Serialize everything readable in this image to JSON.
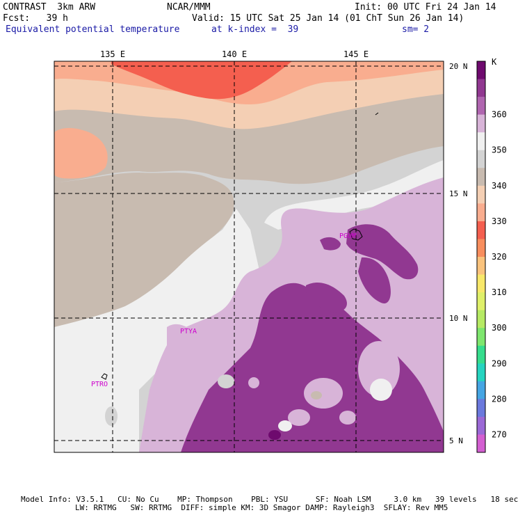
{
  "header": {
    "line1_left": "CONTRAST  3km ARW",
    "line1_mid": "NCAR/MMM",
    "line1_right": "Init: 00 UTC Fri 24 Jan 14",
    "line2_left": "Fcst:   39 h",
    "line2_right": "Valid: 15 UTC Sat 25 Jan 14 (01 ChT Sun 26 Jan 14)",
    "line3_left": "Equivalent potential temperature",
    "line3_mid": "at k-index =  39",
    "line3_right": "sm= 2"
  },
  "map": {
    "lon_labels": [
      "135 E",
      "140 E",
      "145 E"
    ],
    "lat_labels": [
      "20 N",
      "15 N",
      "10 N",
      "5 N"
    ],
    "stations": [
      "PGUM",
      "PTYA",
      "PTRO"
    ]
  },
  "colorbar": {
    "unit": "K",
    "ticks": [
      "360",
      "350",
      "340",
      "330",
      "320",
      "310",
      "300",
      "290",
      "280",
      "270"
    ],
    "colors": [
      "#6e0a6e",
      "#913891",
      "#b066b0",
      "#d8b4d8",
      "#f0f0f0",
      "#d3d3d3",
      "#c8bbb0",
      "#f4cfb4",
      "#f9ad8f",
      "#f45f4f",
      "#f88e5e",
      "#fac37d",
      "#f8e86a",
      "#dff06a",
      "#b6ea64",
      "#7ee66e",
      "#36dd8d",
      "#26d4c0",
      "#45a5e3",
      "#6b79dd",
      "#9b69d6",
      "#d35fd1"
    ]
  },
  "footer": {
    "line1": "Model Info: V3.5.1   CU: No Cu    MP: Thompson    PBL: YSU      SF: Noah LSM     3.0 km   39 levels   18 sec",
    "line2": "LW: RRTMG   SW: RRTMG  DIFF: simple KM: 3D Smagor DAMP: Rayleigh3  SFLAY: Rev MM5"
  }
}
